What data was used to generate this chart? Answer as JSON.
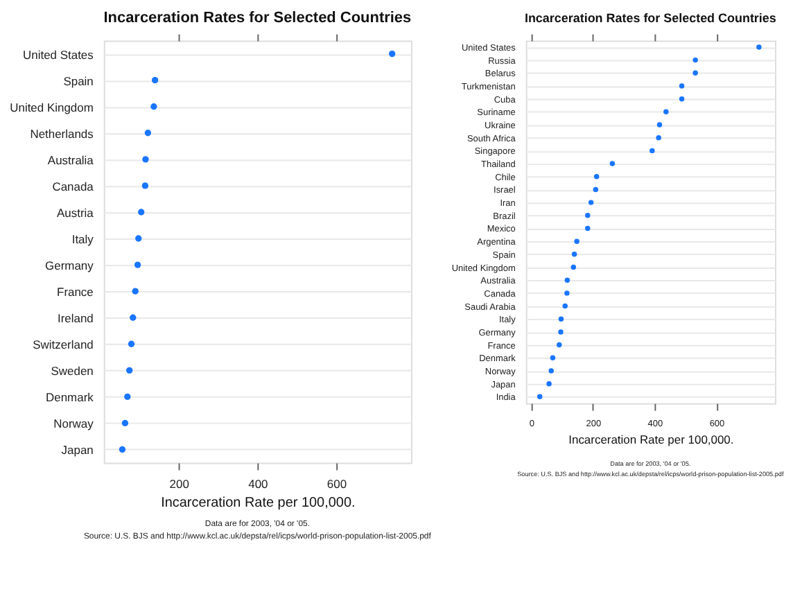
{
  "chart_data": [
    {
      "type": "scatter",
      "orientation": "horizontal",
      "title": "Incarceration Rates for Selected Countries",
      "xlabel": "Incarceration Rate per 100,000.",
      "categories": [
        "United States",
        "Spain",
        "United Kingdom",
        "Netherlands",
        "Australia",
        "Canada",
        "Austria",
        "Italy",
        "Germany",
        "France",
        "Ireland",
        "Switzerland",
        "Sweden",
        "Denmark",
        "Norway",
        "Japan"
      ],
      "series": [
        {
          "color": "#1a75ff",
          "values": [
            742,
            140,
            137,
            122,
            116,
            115,
            105,
            98,
            96,
            90,
            84,
            80,
            75,
            70,
            64,
            57
          ]
        }
      ],
      "xlim": [
        10,
        790
      ],
      "xticks": [
        200,
        400,
        600
      ],
      "grid": "y",
      "marker": "circle",
      "annotations": [
        "Data are for 2003, '04 or '05.",
        "Source: U.S. BJS and http://www.kcl.ac.uk/depsta/rel/icps/world-prison-population-list-2005.pdf"
      ]
    },
    {
      "type": "scatter",
      "orientation": "horizontal",
      "title": "Incarceration Rates for Selected Countries",
      "xlabel": "Incarceration Rate per 100,000.",
      "categories": [
        "United States",
        "Russia",
        "Belarus",
        "Turkmenistan",
        "Cuba",
        "Suriname",
        "Ukraine",
        "South Africa",
        "Singapore",
        "Thailand",
        "Chile",
        "Israel",
        "Iran",
        "Brazil",
        "Mexico",
        "Argentina",
        "Spain",
        "United Kingdom",
        "Australia",
        "Canada",
        "Saudi Arabia",
        "Italy",
        "Germany",
        "France",
        "Denmark",
        "Norway",
        "Japan",
        "India"
      ],
      "series": [
        {
          "color": "#1a75ff",
          "values": [
            738,
            532,
            532,
            488,
            488,
            437,
            416,
            413,
            392,
            263,
            212,
            209,
            194,
            183,
            183,
            148,
            140,
            137,
            117,
            116,
            110,
            97,
            96,
            91,
            70,
            65,
            58,
            28
          ]
        }
      ],
      "xlim": [
        -17,
        790
      ],
      "xticks": [
        0,
        200,
        400,
        600
      ],
      "grid": "y",
      "marker": "circle",
      "annotations": [
        "Data are for 2003, '04 or '05.",
        "Source: U.S. BJS and http://www.kcl.ac.uk/depsta/rel/icps/world-prison-population-list-2005.pdf"
      ]
    }
  ]
}
